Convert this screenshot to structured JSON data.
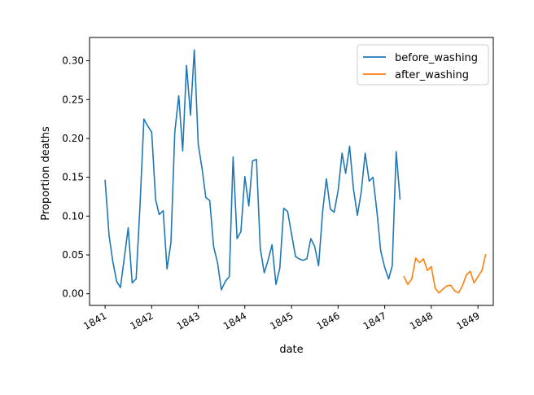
{
  "chart_data": {
    "type": "line",
    "xlabel": "date",
    "ylabel": "Proportion deaths",
    "x_ticks": [
      "1841",
      "1842",
      "1843",
      "1844",
      "1845",
      "1846",
      "1847",
      "1848",
      "1849"
    ],
    "y_ticks": [
      "0.00",
      "0.05",
      "0.10",
      "0.15",
      "0.20",
      "0.25",
      "0.30"
    ],
    "xlim": [
      "1840-09-01",
      "1849-05-01"
    ],
    "ylim": [
      -0.015,
      0.33
    ],
    "grid": false,
    "legend_position": "top-right",
    "series": [
      {
        "name": "before_washing",
        "color": "#1f77b4",
        "x": [
          "1841-01",
          "1841-02",
          "1841-03",
          "1841-04",
          "1841-05",
          "1841-06",
          "1841-07",
          "1841-08",
          "1841-09",
          "1841-10",
          "1841-11",
          "1841-12",
          "1842-01",
          "1842-02",
          "1842-03",
          "1842-04",
          "1842-05",
          "1842-06",
          "1842-07",
          "1842-08",
          "1842-09",
          "1842-10",
          "1842-11",
          "1842-12",
          "1843-01",
          "1843-02",
          "1843-03",
          "1843-04",
          "1843-05",
          "1843-06",
          "1843-07",
          "1843-08",
          "1843-09",
          "1843-10",
          "1843-11",
          "1843-12",
          "1844-01",
          "1844-02",
          "1844-03",
          "1844-04",
          "1844-05",
          "1844-06",
          "1844-07",
          "1844-08",
          "1844-09",
          "1844-10",
          "1844-11",
          "1844-12",
          "1845-01",
          "1845-02",
          "1845-03",
          "1845-04",
          "1845-05",
          "1845-06",
          "1845-07",
          "1845-08",
          "1845-09",
          "1845-10",
          "1845-11",
          "1845-12",
          "1846-01",
          "1846-02",
          "1846-03",
          "1846-04",
          "1846-05",
          "1846-06",
          "1846-07",
          "1846-08",
          "1846-09",
          "1846-10",
          "1846-11",
          "1846-12",
          "1847-01",
          "1847-02",
          "1847-03",
          "1847-04",
          "1847-05"
        ],
        "y": [
          0.146,
          0.075,
          0.043,
          0.016,
          0.008,
          0.047,
          0.085,
          0.014,
          0.019,
          0.112,
          0.225,
          0.216,
          0.208,
          0.121,
          0.102,
          0.107,
          0.032,
          0.066,
          0.208,
          0.255,
          0.184,
          0.294,
          0.23,
          0.314,
          0.192,
          0.16,
          0.124,
          0.12,
          0.061,
          0.04,
          0.005,
          0.016,
          0.022,
          0.176,
          0.071,
          0.08,
          0.151,
          0.113,
          0.171,
          0.173,
          0.058,
          0.027,
          0.043,
          0.063,
          0.012,
          0.033,
          0.11,
          0.106,
          0.077,
          0.048,
          0.045,
          0.043,
          0.045,
          0.071,
          0.061,
          0.036,
          0.105,
          0.148,
          0.109,
          0.105,
          0.133,
          0.181,
          0.155,
          0.19,
          0.135,
          0.101,
          0.131,
          0.181,
          0.145,
          0.15,
          0.106,
          0.055,
          0.034,
          0.019,
          0.036,
          0.183,
          0.122
        ]
      },
      {
        "name": "after_washing",
        "color": "#ff7f0e",
        "x": [
          "1847-06",
          "1847-07",
          "1847-08",
          "1847-09",
          "1847-10",
          "1847-11",
          "1847-12",
          "1848-01",
          "1848-02",
          "1848-03",
          "1848-04",
          "1848-05",
          "1848-06",
          "1848-07",
          "1848-08",
          "1848-09",
          "1848-10",
          "1848-11",
          "1848-12",
          "1849-01",
          "1849-02",
          "1849-03"
        ],
        "y": [
          0.022,
          0.012,
          0.019,
          0.046,
          0.04,
          0.045,
          0.03,
          0.035,
          0.007,
          0.001,
          0.006,
          0.01,
          0.011,
          0.004,
          0.001,
          0.01,
          0.024,
          0.029,
          0.014,
          0.022,
          0.03,
          0.05
        ]
      }
    ]
  }
}
